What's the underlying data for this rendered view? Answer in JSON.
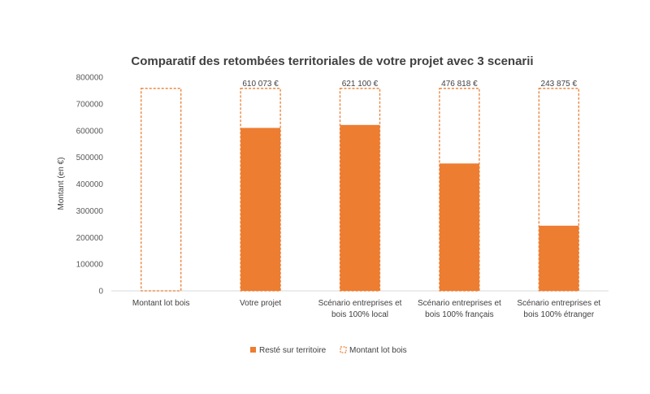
{
  "chart_data": {
    "type": "bar",
    "title": "Comparatif des retombées territoriales de votre projet avec 3  scenarii",
    "ylabel": "Montant (en €)",
    "xlabel": "",
    "ylim": [
      0,
      800000
    ],
    "yticks": [
      0,
      100000,
      200000,
      300000,
      400000,
      500000,
      600000,
      700000,
      800000
    ],
    "ytick_labels": [
      "0",
      "100000",
      "200000",
      "300000",
      "400000",
      "500000",
      "600000",
      "700000",
      "800000"
    ],
    "categories": [
      [
        "Montant lot bois"
      ],
      [
        "Votre projet"
      ],
      [
        "Scénario entreprises et",
        "bois 100% local"
      ],
      [
        "Scénario entreprises et",
        "bois 100% français"
      ],
      [
        "Scénario entreprises et",
        "bois 100% étranger"
      ]
    ],
    "series": [
      {
        "name": "Resté sur territoire",
        "style": "solid",
        "color": "#ED7D31",
        "values": [
          0,
          610073,
          621100,
          476818,
          243875
        ],
        "data_labels": [
          "",
          "610 073 €",
          "621 100 €",
          "476 818 €",
          "243 875 €"
        ]
      },
      {
        "name": "Montant lot bois",
        "style": "dashed-outline",
        "color": "#ED7D31",
        "values": [
          758000,
          758000,
          758000,
          758000,
          758000
        ]
      }
    ],
    "legend_position": "bottom",
    "grid": false
  }
}
